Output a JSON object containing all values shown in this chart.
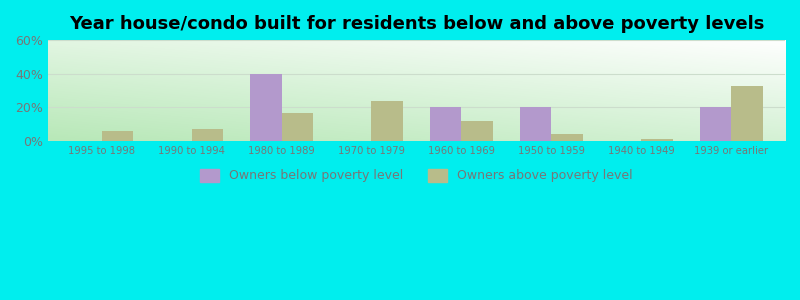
{
  "title": "Year house/condo built for residents below and above poverty levels",
  "categories": [
    "1995 to 1998",
    "1990 to 1994",
    "1980 to 1989",
    "1970 to 1979",
    "1960 to 1969",
    "1950 to 1959",
    "1940 to 1949",
    "1939 or earlier"
  ],
  "below_poverty": [
    0,
    0,
    40,
    0,
    20,
    20,
    0,
    20
  ],
  "above_poverty": [
    6,
    7,
    17,
    24,
    12,
    4,
    1,
    33
  ],
  "below_color": "#b399cc",
  "above_color": "#b8bc8a",
  "outer_bg": "#00eeee",
  "plot_bg_bottom": "#b8e8b8",
  "plot_bg_top": "#ffffff",
  "ylim": [
    0,
    60
  ],
  "yticks": [
    0,
    20,
    40,
    60
  ],
  "legend_below": "Owners below poverty level",
  "legend_above": "Owners above poverty level",
  "title_fontsize": 13,
  "bar_width": 0.35,
  "tick_color": "#777777",
  "grid_color": "#ccddcc"
}
